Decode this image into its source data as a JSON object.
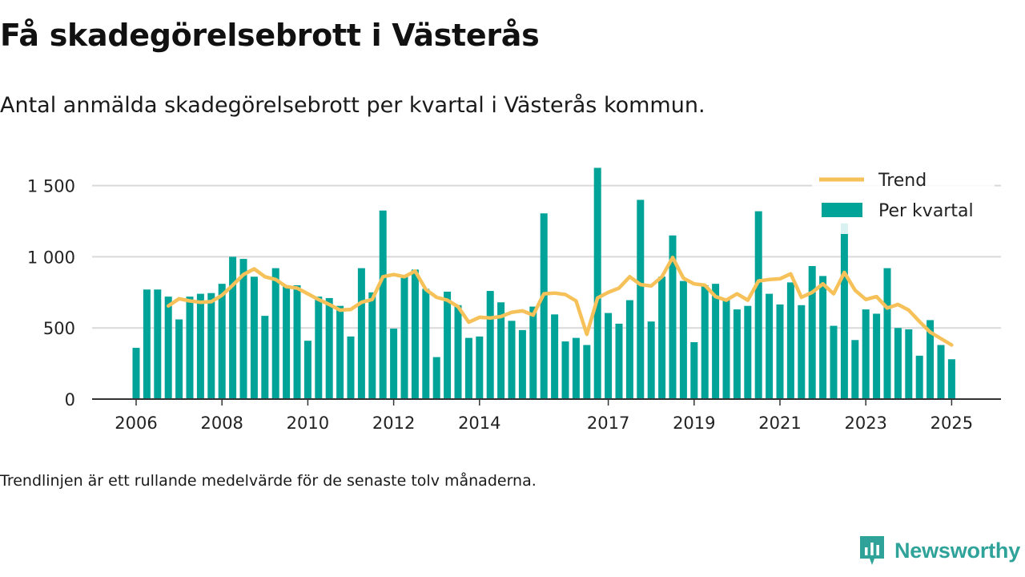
{
  "title": "Få skadegörelsebrott i Västerås",
  "subtitle": "Antal anmälda skadegörelsebrott per kvartal i Västerås kommun.",
  "footnote": "Trendlinjen är ett rullande medelvärde för de senaste tolv månaderna.",
  "brand": {
    "name": "Newsworthy",
    "color": "#2fa39a"
  },
  "colors": {
    "bars": "#00a398",
    "trend": "#f7c15a",
    "grid": "#d9d9d9",
    "axis": "#333333"
  },
  "chart_data": {
    "type": "bar",
    "x_unit": "quarter",
    "x": [
      "2006Q1",
      "2006Q2",
      "2006Q3",
      "2006Q4",
      "2007Q1",
      "2007Q2",
      "2007Q3",
      "2007Q4",
      "2008Q1",
      "2008Q2",
      "2008Q3",
      "2008Q4",
      "2009Q1",
      "2009Q2",
      "2009Q3",
      "2009Q4",
      "2010Q1",
      "2010Q2",
      "2010Q3",
      "2010Q4",
      "2011Q1",
      "2011Q2",
      "2011Q3",
      "2011Q4",
      "2012Q1",
      "2012Q2",
      "2012Q3",
      "2012Q4",
      "2013Q1",
      "2013Q2",
      "2013Q3",
      "2013Q4",
      "2014Q1",
      "2014Q2",
      "2014Q3",
      "2014Q4",
      "2015Q1",
      "2015Q2",
      "2015Q3",
      "2015Q4",
      "2016Q1",
      "2016Q2",
      "2016Q3",
      "2016Q4",
      "2017Q1",
      "2017Q2",
      "2017Q3",
      "2017Q4",
      "2018Q1",
      "2018Q2",
      "2018Q3",
      "2018Q4",
      "2019Q1",
      "2019Q2",
      "2019Q3",
      "2019Q4",
      "2020Q1",
      "2020Q2",
      "2020Q3",
      "2020Q4",
      "2021Q1",
      "2021Q2",
      "2021Q3",
      "2021Q4",
      "2022Q1",
      "2022Q2",
      "2022Q3",
      "2022Q4",
      "2023Q1",
      "2023Q2",
      "2023Q3",
      "2023Q4",
      "2024Q1",
      "2024Q2",
      "2024Q3",
      "2024Q4",
      "2025Q1"
    ],
    "x_tick_labels": [
      "2006",
      "2008",
      "2010",
      "2012",
      "2014",
      "2017",
      "2019",
      "2021",
      "2023",
      "2025"
    ],
    "x_tick_positions": [
      "2006Q1",
      "2008Q1",
      "2010Q1",
      "2012Q1",
      "2014Q1",
      "2017Q1",
      "2019Q1",
      "2021Q1",
      "2023Q1",
      "2025Q1"
    ],
    "y_ticks": [
      0,
      500,
      1000,
      1500
    ],
    "y_tick_labels": [
      "0",
      "500",
      "1 000",
      "1 500"
    ],
    "ylim": [
      0,
      1650
    ],
    "grid": true,
    "legend_position": "top-right",
    "series": [
      {
        "name": "Per kvartal",
        "kind": "bar",
        "values": [
          360,
          770,
          770,
          720,
          560,
          720,
          740,
          745,
          810,
          1000,
          985,
          860,
          585,
          920,
          800,
          800,
          410,
          720,
          710,
          655,
          440,
          920,
          750,
          1325,
          495,
          870,
          910,
          775,
          295,
          755,
          660,
          430,
          440,
          760,
          680,
          550,
          485,
          650,
          1305,
          595,
          405,
          430,
          380,
          1625,
          605,
          530,
          695,
          1400,
          545,
          860,
          1150,
          830,
          400,
          800,
          810,
          700,
          630,
          655,
          1320,
          740,
          665,
          820,
          660,
          935,
          865,
          515,
          1235,
          415,
          630,
          600,
          920,
          500,
          490,
          305,
          555,
          380,
          280
        ],
        "color": "#00a398"
      },
      {
        "name": "Trend",
        "kind": "line",
        "values": [
          null,
          null,
          null,
          655,
          705,
          690,
          680,
          685,
          730,
          800,
          875,
          915,
          860,
          840,
          790,
          780,
          740,
          700,
          665,
          625,
          630,
          680,
          700,
          860,
          875,
          860,
          900,
          770,
          715,
          695,
          650,
          540,
          575,
          570,
          580,
          610,
          620,
          590,
          740,
          745,
          735,
          690,
          455,
          710,
          750,
          780,
          860,
          805,
          795,
          860,
          995,
          850,
          810,
          800,
          720,
          695,
          740,
          695,
          830,
          840,
          845,
          880,
          715,
          750,
          810,
          740,
          890,
          765,
          700,
          720,
          640,
          665,
          625,
          545,
          470,
          425,
          380
        ],
        "color": "#f7c15a"
      }
    ]
  }
}
